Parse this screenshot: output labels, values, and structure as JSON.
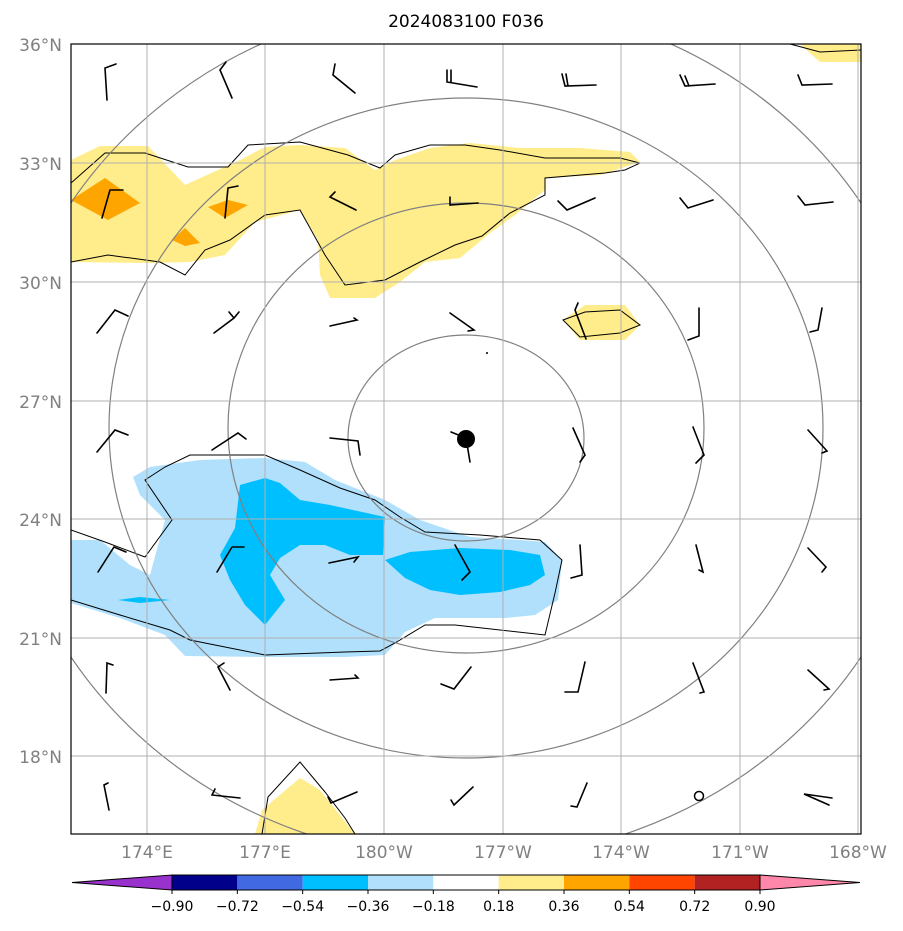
{
  "title": "2024083100 F036",
  "colors": {
    "neg_light": "#b0e0fb",
    "neg_medium": "#00bfff",
    "pos_light": "#ffec8b",
    "pos_medium": "#ffa500",
    "contour_gray": "#808080",
    "contour_black": "#000000",
    "gridline": "#b0b0b0"
  },
  "lat_labels": [
    "36°N",
    "33°N",
    "30°N",
    "27°N",
    "24°N",
    "21°N",
    "18°N"
  ],
  "lon_labels": [
    "174°E",
    "177°E",
    "180°W",
    "177°W",
    "174°W",
    "171°W",
    "168°W"
  ],
  "colorbar": {
    "ticks": [
      "−0.90",
      "−0.72",
      "−0.54",
      "−0.36",
      "−0.18",
      "0.18",
      "0.36",
      "0.54",
      "0.72",
      "0.90"
    ],
    "colors": [
      "#9932cc",
      "#00008b",
      "#4169e1",
      "#00bfff",
      "#b0e0fb",
      "#ffffff",
      "#ffec8b",
      "#ffa500",
      "#ff4500",
      "#b22222",
      "#ff88aa"
    ]
  },
  "storm_center": {
    "lon": -178.0,
    "lat": 26.0
  },
  "chart_data": {
    "type": "map",
    "title": "2024083100 F036",
    "lat_range": [
      16.0,
      36.0
    ],
    "lon_range": [
      "172.0°E",
      "168.0°W"
    ],
    "colorbar_levels": [
      -0.9,
      -0.72,
      -0.54,
      -0.36,
      -0.18,
      0.18,
      0.36,
      0.54,
      0.72,
      0.9
    ],
    "grid": true
  }
}
